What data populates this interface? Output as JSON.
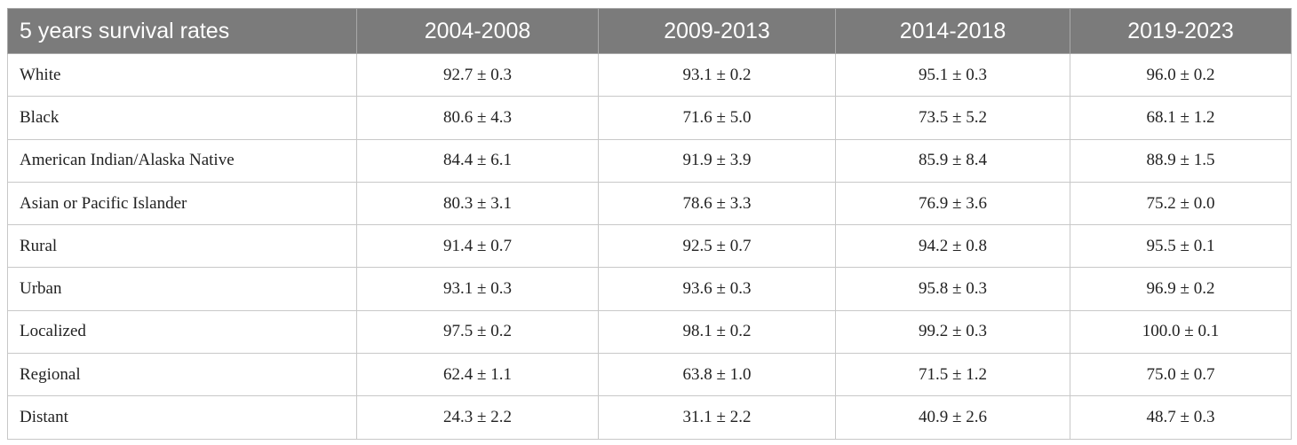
{
  "table": {
    "headers": [
      "5 years survival rates",
      "2004-2008",
      "2009-2013",
      "2014-2018",
      "2019-2023"
    ],
    "rows": [
      [
        "White",
        "92.7 ± 0.3",
        "93.1 ± 0.2",
        "95.1 ± 0.3",
        "96.0 ± 0.2"
      ],
      [
        "Black",
        "80.6 ± 4.3",
        "71.6 ± 5.0",
        "73.5 ± 5.2",
        "68.1 ± 1.2"
      ],
      [
        "American Indian/Alaska Native",
        "84.4 ± 6.1",
        "91.9 ± 3.9",
        "85.9 ± 8.4",
        "88.9 ± 1.5"
      ],
      [
        "Asian or Pacific Islander",
        "80.3 ± 3.1",
        "78.6 ± 3.3",
        "76.9 ± 3.6",
        "75.2 ± 0.0"
      ],
      [
        "Rural",
        "91.4 ± 0.7",
        "92.5 ± 0.7",
        "94.2 ± 0.8",
        "95.5 ± 0.1"
      ],
      [
        "Urban",
        "93.1 ± 0.3",
        "93.6 ± 0.3",
        "95.8 ± 0.3",
        "96.9 ± 0.2"
      ],
      [
        "Localized",
        "97.5 ± 0.2",
        "98.1 ± 0.2",
        "99.2 ± 0.3",
        "100.0 ± 0.1"
      ],
      [
        "Regional",
        "62.4 ± 1.1",
        "63.8 ± 1.0",
        "71.5 ± 1.2",
        "75.0 ± 0.7"
      ],
      [
        "Distant",
        "24.3 ± 2.2",
        "31.1 ± 2.2",
        "40.9 ± 2.6",
        "48.7 ± 0.3"
      ]
    ]
  },
  "colors": {
    "header_background": "#7b7b7b",
    "header_text": "#ffffff",
    "border": "#c8c8c8",
    "body_text": "#222222"
  }
}
